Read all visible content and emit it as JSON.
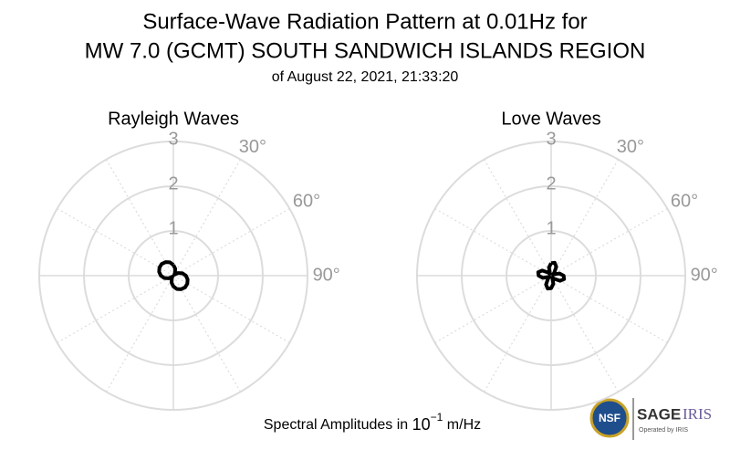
{
  "figure": {
    "title": [
      "Surface-Wave Radiation Pattern at 0.01Hz for",
      "MW 7.0 (GCMT) SOUTH SANDWICH ISLANDS REGION"
    ],
    "subtitle": "of August 22, 2021, 21:33:20",
    "footer": {
      "text": "Spectral Amplitudes in ",
      "base": "10",
      "exponent": "−1",
      "unit": " m/Hz"
    },
    "logos": {
      "nsf": "NSF",
      "sage": "SAGE",
      "iris": "IRIS",
      "operated": "Operated by IRIS"
    }
  },
  "chart_data": [
    {
      "type": "polar",
      "title": "Rayleigh Waves",
      "color": "#000000",
      "theta": [
        0,
        15,
        30,
        45,
        60,
        75,
        90,
        105,
        120,
        135,
        150,
        165,
        180,
        195,
        210,
        225,
        240,
        255,
        270,
        285,
        300,
        315,
        330,
        345,
        360
      ],
      "values": [
        0.24,
        0.16,
        0.07,
        0.03,
        0.12,
        0.21,
        0.28,
        0.33,
        0.36,
        0.37,
        0.35,
        0.31,
        0.24,
        0.16,
        0.07,
        0.03,
        0.12,
        0.21,
        0.28,
        0.33,
        0.36,
        0.37,
        0.35,
        0.31,
        0.24
      ],
      "rlim": [
        0,
        3
      ],
      "rticks": [
        1,
        2,
        3
      ],
      "thetagrid": [
        0,
        30,
        60,
        90,
        120,
        150,
        180,
        210,
        240,
        270,
        300,
        330
      ],
      "thetaticks": [
        {
          "value": 30,
          "label": "30°"
        },
        {
          "value": 60,
          "label": "60°"
        },
        {
          "value": 90,
          "label": "90°"
        }
      ]
    },
    {
      "type": "polar",
      "title": "Love Waves",
      "color": "#000000",
      "theta": [
        0,
        15,
        30,
        45,
        60,
        75,
        90,
        105,
        120,
        135,
        150,
        165,
        180,
        195,
        210,
        225,
        240,
        255,
        270,
        285,
        300,
        315,
        330,
        345,
        360
      ],
      "values": [
        0.28,
        0.3,
        0.23,
        0.1,
        0.05,
        0.19,
        0.28,
        0.3,
        0.23,
        0.1,
        0.05,
        0.19,
        0.28,
        0.3,
        0.23,
        0.1,
        0.05,
        0.19,
        0.28,
        0.3,
        0.23,
        0.1,
        0.05,
        0.19,
        0.28
      ],
      "rlim": [
        0,
        3
      ],
      "rticks": [
        1,
        2,
        3
      ],
      "thetagrid": [
        0,
        30,
        60,
        90,
        120,
        150,
        180,
        210,
        240,
        270,
        300,
        330
      ],
      "thetaticks": [
        {
          "value": 30,
          "label": "30°"
        },
        {
          "value": 60,
          "label": "60°"
        },
        {
          "value": 90,
          "label": "90°"
        }
      ]
    }
  ]
}
